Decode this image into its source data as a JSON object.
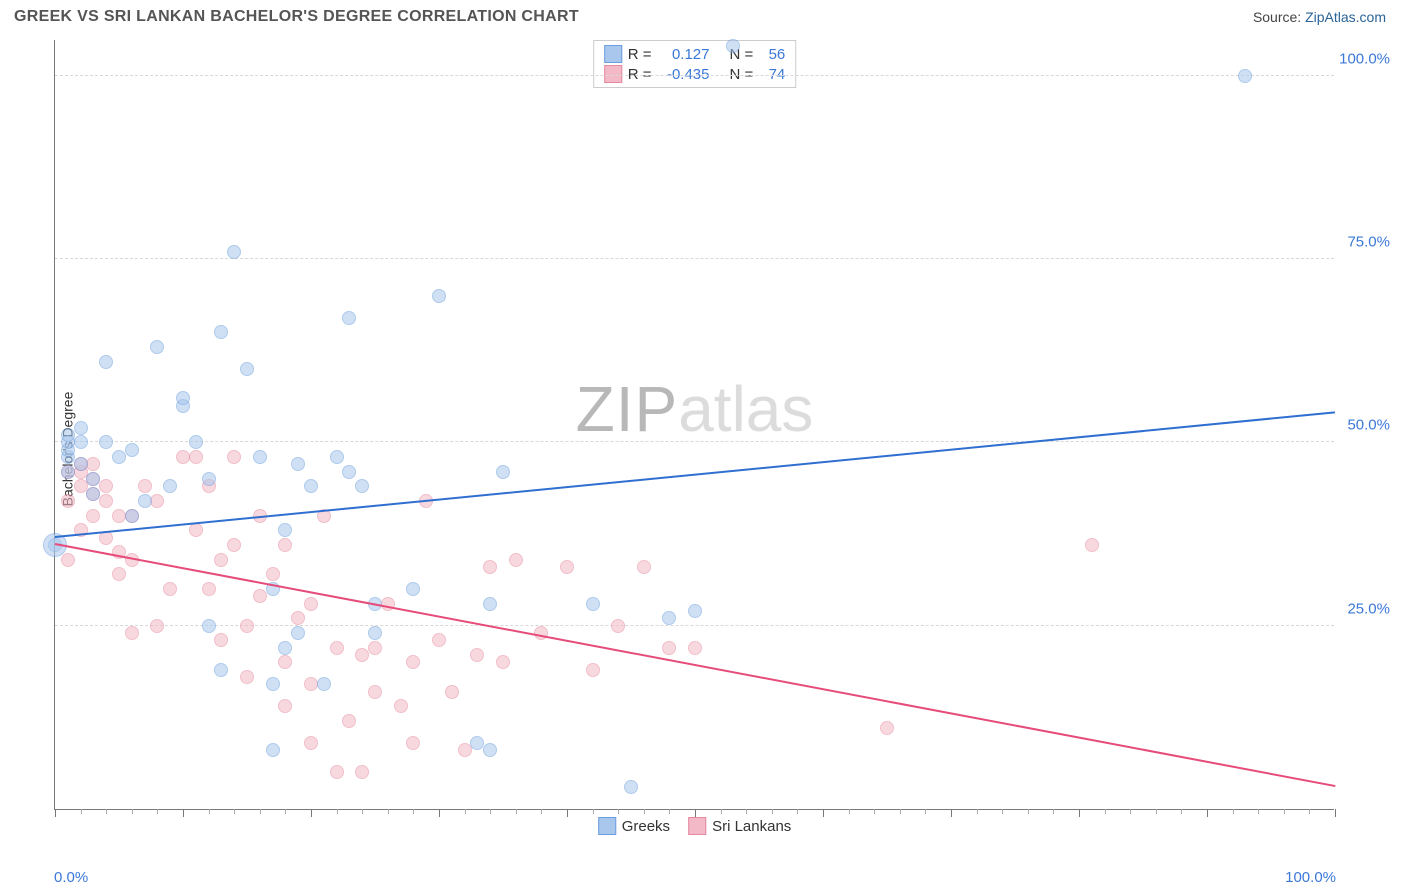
{
  "title": "GREEK VS SRI LANKAN BACHELOR'S DEGREE CORRELATION CHART",
  "source_prefix": "Source: ",
  "source_link": "ZipAtlas.com",
  "y_axis_label": "Bachelor's Degree",
  "watermark": {
    "part1": "ZIP",
    "part2": "atlas"
  },
  "chart": {
    "type": "scatter_with_trend",
    "xlim": [
      0,
      100
    ],
    "ylim": [
      0,
      105
    ],
    "x_major_ticks": [
      0,
      10,
      20,
      30,
      40,
      50,
      60,
      70,
      80,
      90,
      100
    ],
    "x_minor_step": 2,
    "y_ticks": [
      25,
      50,
      75,
      100
    ],
    "y_tick_labels": [
      "25.0%",
      "50.0%",
      "75.0%",
      "100.0%"
    ],
    "x_label_0": "0.0%",
    "x_label_100": "100.0%",
    "grid_color": "#d8d8d8",
    "axis_color": "#777777",
    "background_color": "#ffffff",
    "marker_radius": 7,
    "marker_radius_large": 12,
    "marker_opacity": 0.55
  },
  "series": {
    "greeks": {
      "label": "Greeks",
      "fill": "#a9c7ec",
      "stroke": "#6d9fde",
      "line_color": "#2f6fd0",
      "R_label": "R =",
      "R_value": "0.127",
      "N_label": "N =",
      "N_value": "56",
      "trend": {
        "x1": 0,
        "y1": 37,
        "x2": 100,
        "y2": 54
      },
      "points": [
        [
          0,
          36
        ],
        [
          1,
          46
        ],
        [
          1,
          48
        ],
        [
          1,
          49
        ],
        [
          1,
          50
        ],
        [
          1,
          51
        ],
        [
          2,
          47
        ],
        [
          2,
          50
        ],
        [
          2,
          52
        ],
        [
          3,
          45
        ],
        [
          3,
          43
        ],
        [
          4,
          50
        ],
        [
          4,
          61
        ],
        [
          5,
          48
        ],
        [
          6,
          40
        ],
        [
          6,
          49
        ],
        [
          7,
          42
        ],
        [
          8,
          63
        ],
        [
          9,
          44
        ],
        [
          10,
          55
        ],
        [
          10,
          56
        ],
        [
          11,
          50
        ],
        [
          12,
          45
        ],
        [
          12,
          25
        ],
        [
          13,
          19
        ],
        [
          13,
          65
        ],
        [
          14,
          76
        ],
        [
          15,
          60
        ],
        [
          16,
          48
        ],
        [
          17,
          30
        ],
        [
          17,
          17
        ],
        [
          17,
          8
        ],
        [
          18,
          22
        ],
        [
          18,
          38
        ],
        [
          19,
          47
        ],
        [
          19,
          24
        ],
        [
          20,
          44
        ],
        [
          21,
          17
        ],
        [
          22,
          48
        ],
        [
          23,
          46
        ],
        [
          23,
          67
        ],
        [
          24,
          44
        ],
        [
          25,
          24
        ],
        [
          25,
          28
        ],
        [
          28,
          30
        ],
        [
          30,
          70
        ],
        [
          33,
          9
        ],
        [
          34,
          8
        ],
        [
          34,
          28
        ],
        [
          35,
          46
        ],
        [
          42,
          28
        ],
        [
          45,
          3
        ],
        [
          48,
          26
        ],
        [
          50,
          27
        ],
        [
          53,
          104
        ],
        [
          93,
          100
        ]
      ],
      "large_points": [
        [
          0,
          36
        ]
      ]
    },
    "srilankans": {
      "label": "Sri Lankans",
      "fill": "#f4b9c6",
      "stroke": "#e58aa0",
      "line_color": "#e64b7a",
      "R_label": "R =",
      "R_value": "-0.435",
      "N_label": "N =",
      "N_value": "74",
      "trend": {
        "x1": 0,
        "y1": 36,
        "x2": 100,
        "y2": 3
      },
      "points": [
        [
          1,
          34
        ],
        [
          1,
          42
        ],
        [
          1,
          46
        ],
        [
          2,
          38
        ],
        [
          2,
          44
        ],
        [
          2,
          46
        ],
        [
          2,
          47
        ],
        [
          3,
          40
        ],
        [
          3,
          43
        ],
        [
          3,
          45
        ],
        [
          3,
          47
        ],
        [
          4,
          37
        ],
        [
          4,
          42
        ],
        [
          4,
          44
        ],
        [
          5,
          32
        ],
        [
          5,
          35
        ],
        [
          5,
          40
        ],
        [
          6,
          24
        ],
        [
          6,
          34
        ],
        [
          6,
          40
        ],
        [
          7,
          44
        ],
        [
          8,
          25
        ],
        [
          8,
          42
        ],
        [
          9,
          30
        ],
        [
          10,
          48
        ],
        [
          11,
          38
        ],
        [
          11,
          48
        ],
        [
          12,
          44
        ],
        [
          12,
          30
        ],
        [
          13,
          23
        ],
        [
          13,
          34
        ],
        [
          14,
          36
        ],
        [
          14,
          48
        ],
        [
          15,
          18
        ],
        [
          15,
          25
        ],
        [
          16,
          29
        ],
        [
          16,
          40
        ],
        [
          17,
          32
        ],
        [
          18,
          14
        ],
        [
          18,
          20
        ],
        [
          18,
          36
        ],
        [
          19,
          26
        ],
        [
          20,
          17
        ],
        [
          20,
          28
        ],
        [
          20,
          9
        ],
        [
          21,
          40
        ],
        [
          22,
          5
        ],
        [
          22,
          22
        ],
        [
          23,
          12
        ],
        [
          24,
          5
        ],
        [
          24,
          21
        ],
        [
          25,
          16
        ],
        [
          25,
          22
        ],
        [
          26,
          28
        ],
        [
          27,
          14
        ],
        [
          28,
          20
        ],
        [
          28,
          9
        ],
        [
          29,
          42
        ],
        [
          30,
          23
        ],
        [
          31,
          16
        ],
        [
          32,
          8
        ],
        [
          33,
          21
        ],
        [
          34,
          33
        ],
        [
          35,
          20
        ],
        [
          36,
          34
        ],
        [
          38,
          24
        ],
        [
          40,
          33
        ],
        [
          42,
          19
        ],
        [
          44,
          25
        ],
        [
          46,
          33
        ],
        [
          48,
          22
        ],
        [
          50,
          22
        ],
        [
          65,
          11
        ],
        [
          81,
          36
        ]
      ],
      "large_points": []
    }
  }
}
